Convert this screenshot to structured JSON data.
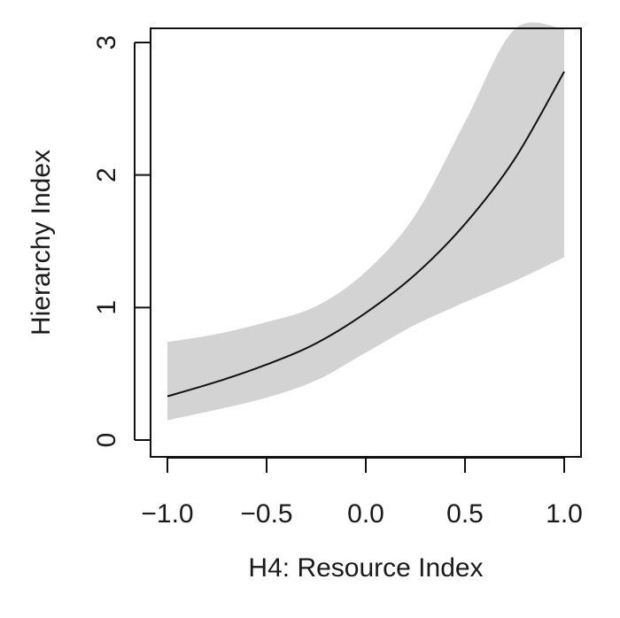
{
  "chart_data": {
    "type": "line",
    "xlabel": "H4: Resource Index",
    "ylabel": "Hierarchy Index",
    "xlim": [
      -1.0,
      1.0
    ],
    "ylim": [
      0,
      3
    ],
    "x_ticks": [
      "−1.0",
      "−0.5",
      "0.0",
      "0.5",
      "1.0"
    ],
    "x_tick_values": [
      -1.0,
      -0.5,
      0.0,
      0.5,
      1.0
    ],
    "y_ticks": [
      "0",
      "1",
      "2",
      "3"
    ],
    "y_tick_values": [
      0,
      1,
      2,
      3
    ],
    "grid": false,
    "line_color": "#111111",
    "band_color": "#d3d3d3",
    "series": [
      {
        "kind": "fit",
        "x": [
          -1.0,
          -0.75,
          -0.5,
          -0.25,
          0.0,
          0.25,
          0.5,
          0.75,
          1.0
        ],
        "values": [
          0.33,
          0.44,
          0.57,
          0.73,
          0.96,
          1.25,
          1.63,
          2.12,
          2.78
        ]
      },
      {
        "kind": "confidence_band",
        "x": [
          -1.0,
          -0.75,
          -0.5,
          -0.25,
          0.0,
          0.25,
          0.5,
          0.75,
          1.0
        ],
        "lower": [
          0.15,
          0.23,
          0.32,
          0.45,
          0.66,
          0.87,
          1.04,
          1.2,
          1.38
        ],
        "upper": [
          0.74,
          0.8,
          0.89,
          1.01,
          1.27,
          1.7,
          2.4,
          3.2,
          3.2
        ]
      }
    ]
  }
}
